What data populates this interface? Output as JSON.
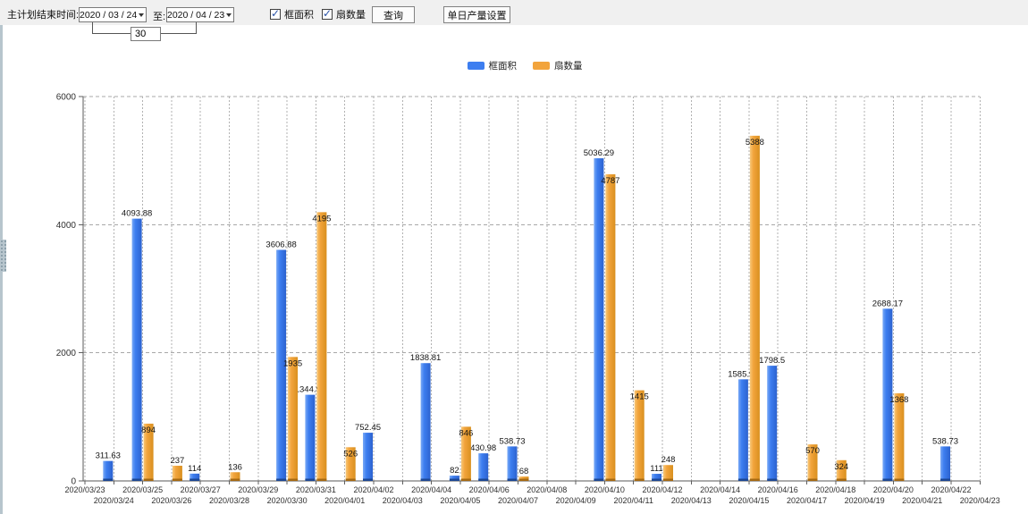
{
  "toolbar": {
    "label_plan_end": "主计划结束时间:",
    "date_from": "2020 / 03 / 24",
    "to_label": "至:",
    "date_to": "2020 / 04 / 23",
    "days_value": "30",
    "checkbox_frame_area": "框面积",
    "checkbox_fan_count": "扇数量",
    "query_button": "查询",
    "daily_output_button": "单日产量设置"
  },
  "legend": {
    "items": [
      {
        "label": "框面积",
        "color": "#3d7ef0"
      },
      {
        "label": "扇数量",
        "color": "#f2a43c"
      }
    ]
  },
  "chart_data": {
    "type": "bar",
    "title": "",
    "xlabel": "",
    "ylabel": "",
    "ylim": [
      0,
      6000
    ],
    "yticks": [
      0,
      2000,
      4000,
      6000
    ],
    "grid": "dashed",
    "legend_position": "top-center",
    "categories": [
      "2020/03/23",
      "2020/03/24",
      "2020/03/25",
      "2020/03/26",
      "2020/03/27",
      "2020/03/28",
      "2020/03/29",
      "2020/03/30",
      "2020/03/31",
      "2020/04/01",
      "2020/04/02",
      "2020/04/03",
      "2020/04/04",
      "2020/04/05",
      "2020/04/06",
      "2020/04/07",
      "2020/04/08",
      "2020/04/09",
      "2020/04/10",
      "2020/04/11",
      "2020/04/12",
      "2020/04/13",
      "2020/04/14",
      "2020/04/15",
      "2020/04/16",
      "2020/04/17",
      "2020/04/18",
      "2020/04/19",
      "2020/04/20",
      "2020/04/21",
      "2020/04/22",
      "2020/04/23"
    ],
    "series": [
      {
        "name": "框面积",
        "color": "#3d7ef0",
        "values": [
          null,
          311.63,
          4093.88,
          null,
          114,
          null,
          null,
          3606.88,
          1344.95,
          null,
          752.45,
          null,
          1838.81,
          82,
          430.98,
          538.73,
          null,
          null,
          5036.29,
          null,
          111,
          null,
          null,
          1585.96,
          1798.5,
          null,
          null,
          null,
          2688.17,
          null,
          538.73,
          null
        ]
      },
      {
        "name": "扇数量",
        "color": "#f2a43c",
        "values": [
          null,
          null,
          894,
          237,
          null,
          136,
          null,
          1935,
          4195,
          526,
          null,
          null,
          null,
          846,
          null,
          68,
          null,
          null,
          4787,
          1415,
          248,
          null,
          null,
          5388,
          null,
          570,
          324,
          null,
          1368,
          null,
          null,
          null
        ]
      }
    ]
  }
}
